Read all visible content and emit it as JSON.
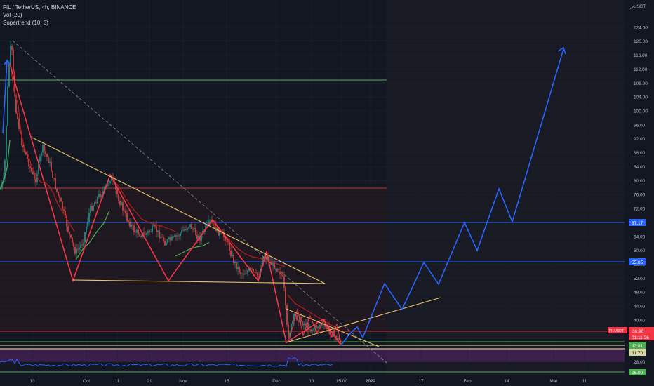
{
  "legend": {
    "symbol": "FIL / TetherUS, 4h, BINANCE",
    "volume": "Vol (20)",
    "supertrend": "Supertrend (10, 3)"
  },
  "axis": {
    "currency": "USDT",
    "y_ticks": [
      "124.00",
      "120.00",
      "116.00",
      "112.00",
      "108.00",
      "104.00",
      "100.00",
      "96.00",
      "92.00",
      "88.00",
      "84.00",
      "80.00",
      "76.00",
      "72.00",
      "68.00",
      "64.00",
      "60.00",
      "56.00",
      "52.00",
      "48.00",
      "44.00",
      "40.00",
      "36.00",
      "28.00"
    ],
    "x_ticks": [
      "13",
      "Oct",
      "11",
      "21",
      "Nov",
      "15",
      "Dec",
      "13",
      "15:00",
      "2022",
      "17",
      "Feb",
      "14",
      "Mar",
      "11"
    ]
  },
  "price_badges": {
    "level_67": "67.17",
    "level_55": "55.85",
    "symbol_tag": "FILUSDT",
    "current_price": "36.90",
    "countdown": "01:11:26",
    "level_32": "32.81",
    "level_31": "31.70",
    "level_26": "26.00"
  },
  "colors": {
    "background": "#131722",
    "future_zone": "#1a1d25",
    "candle_up": "#26a69a",
    "candle_down": "#ef5350",
    "supertrend_down": "#c62828",
    "supertrend_up": "#4caf50",
    "wave_red": "#f23645",
    "triangle_yellow": "#e8c46a",
    "projection_blue": "#2962ff",
    "h_blue": "#2962ff",
    "h_green": "#4caf50",
    "h_red": "#d32f2f",
    "purple_zone": "#5b2a6e"
  }
}
